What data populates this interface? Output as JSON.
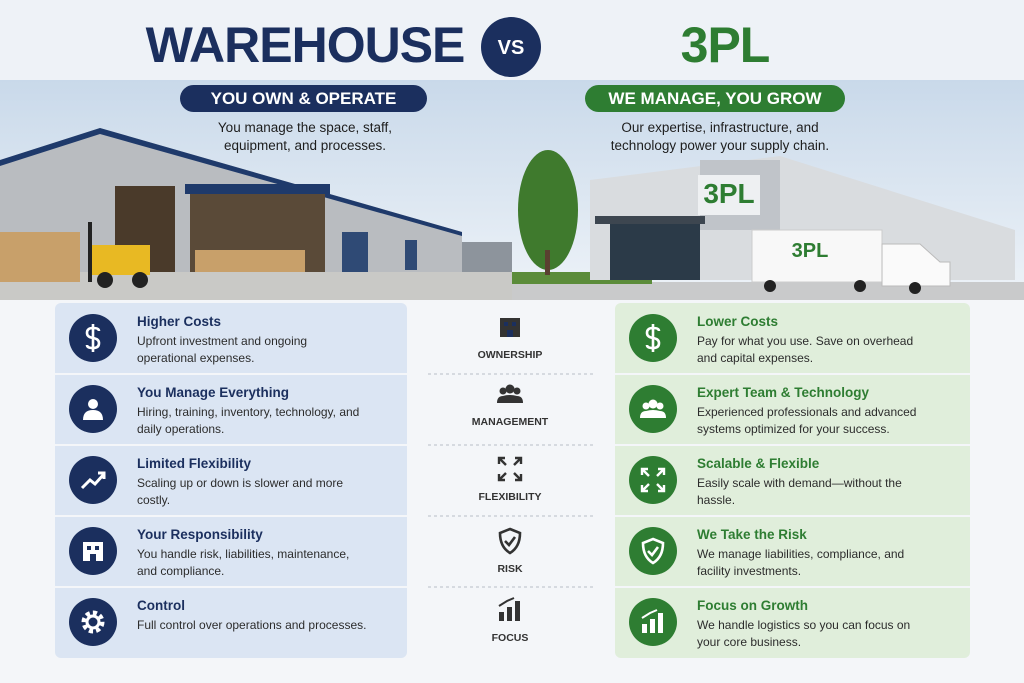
{
  "header": {
    "left_title": "WAREHOUSE",
    "vs": "VS",
    "right_title": "3PL"
  },
  "left": {
    "tagline": "YOU OWN & OPERATE",
    "description": "You manage the space, staff, equipment, and processes.",
    "rows": [
      {
        "title": "Higher Costs",
        "text": "Upfront investment and ongoing operational expenses."
      },
      {
        "title": "You Manage Everything",
        "text": "Hiring, training, inventory, technology, and daily operations."
      },
      {
        "title": "Limited Flexibility",
        "text": "Scaling up or down is slower and more costly."
      },
      {
        "title": "Your Responsibility",
        "text": "You handle risk, liabilities, maintenance, and compliance."
      },
      {
        "title": "Control",
        "text": "Full control over operations and processes."
      }
    ]
  },
  "right": {
    "tagline": "WE MANAGE, YOU GROW",
    "description": "Our expertise, infrastructure, and technology power your supply chain.",
    "building_sign": "3PL",
    "truck_sign": "3PL",
    "rows": [
      {
        "title": "Lower Costs",
        "text": "Pay for what you use. Save on overhead and capital expenses."
      },
      {
        "title": "Expert Team & Technology",
        "text": "Experienced professionals and advanced systems optimized for your success."
      },
      {
        "title": "Scalable & Flexible",
        "text": "Easily scale with demand—without the hassle."
      },
      {
        "title": "We Take the Risk",
        "text": "We manage liabilities, compliance, and facility investments."
      },
      {
        "title": "Focus on Growth",
        "text": "We handle logistics so you can focus on your core business."
      }
    ]
  },
  "criteria": [
    "OWNERSHIP",
    "MANAGEMENT",
    "FLEXIBILITY",
    "RISK",
    "FOCUS"
  ]
}
